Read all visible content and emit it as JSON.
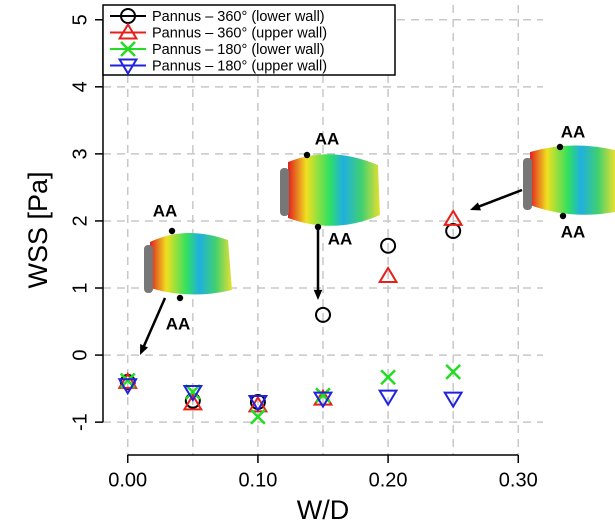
{
  "chart_data": {
    "type": "scatter",
    "x_label": "W/D",
    "y_label": "WSS [Pa]",
    "x": [
      0,
      0.05,
      0.1,
      0.15,
      0.2,
      0.25
    ],
    "series": [
      {
        "name": "Pannus – 360° (lower wall)",
        "color": "#000000",
        "marker": "circle",
        "values": [
          -0.4,
          -0.68,
          -0.7,
          0.6,
          1.63,
          1.85
        ]
      },
      {
        "name": "Pannus – 360° (upper wall)",
        "color": "#e8201a",
        "marker": "triangle-up",
        "values": [
          -0.4,
          -0.72,
          -0.75,
          -0.65,
          1.18,
          2.03
        ]
      },
      {
        "name": "Pannus – 180° (lower wall)",
        "color": "#22dd22",
        "marker": "cross",
        "values": [
          -0.38,
          -0.55,
          -0.92,
          -0.6,
          -0.33,
          -0.25
        ]
      },
      {
        "name": "Pannus – 180° (upper wall)",
        "color": "#2222dd",
        "marker": "triangle-down",
        "values": [
          -0.45,
          -0.55,
          -0.7,
          -0.65,
          -0.62,
          -0.65
        ]
      }
    ],
    "xlim": [
      -0.019,
      0.319
    ],
    "ylim": [
      -1.49,
      5.22
    ],
    "xticks": [
      {
        "value": 0,
        "label": "0.00"
      },
      {
        "value": 0.1,
        "label": "0.10"
      },
      {
        "value": 0.2,
        "label": "0.20"
      },
      {
        "value": 0.3,
        "label": "0.30"
      }
    ],
    "xgrid": [
      0,
      0.05,
      0.1,
      0.15,
      0.2,
      0.25,
      0.3
    ],
    "yticks": [
      -1,
      0,
      1,
      2,
      3,
      4,
      5
    ],
    "grid": true,
    "legend": "top-left",
    "annotations": [
      "AA",
      "AA",
      "AA",
      "AA",
      "AA",
      "AA"
    ]
  }
}
